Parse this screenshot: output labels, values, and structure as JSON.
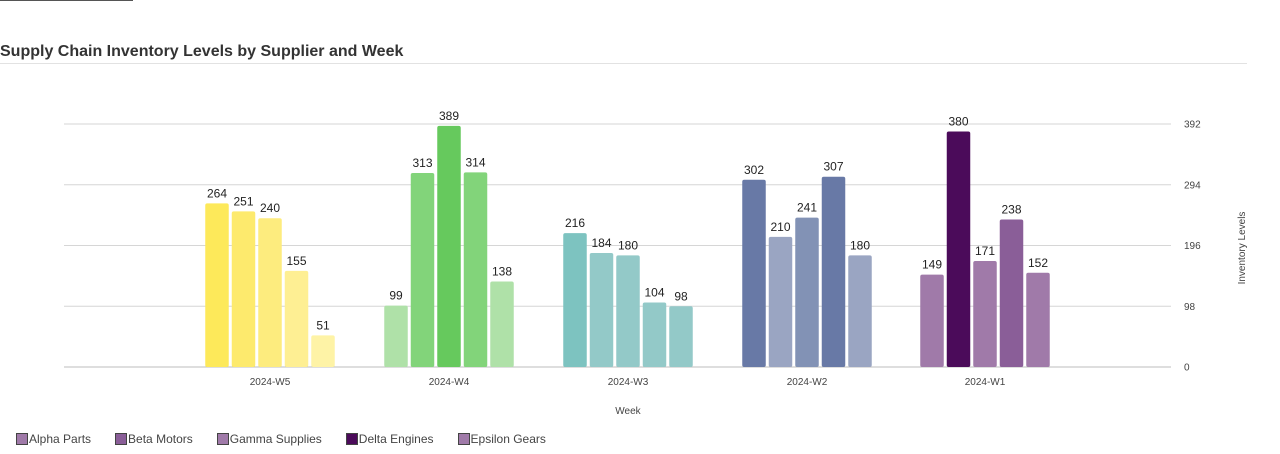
{
  "chart_data": {
    "type": "bar",
    "title": "Supply Chain Inventory Levels by Supplier and Week",
    "xlabel": "Week",
    "ylabel": "Inventory Levels",
    "categories": [
      "2024-W5",
      "2024-W4",
      "2024-W3",
      "2024-W2",
      "2024-W1"
    ],
    "series": [
      {
        "name": "Alpha Parts",
        "values": [
          264,
          99,
          216,
          302,
          149
        ]
      },
      {
        "name": "Beta Motors",
        "values": [
          251,
          313,
          184,
          210,
          380
        ]
      },
      {
        "name": "Gamma Supplies",
        "values": [
          240,
          389,
          180,
          241,
          171
        ]
      },
      {
        "name": "Delta Engines",
        "values": [
          155,
          314,
          104,
          307,
          238
        ]
      },
      {
        "name": "Epsilon Gears",
        "values": [
          51,
          138,
          98,
          180,
          152
        ]
      }
    ],
    "yticks": [
      "0",
      "98",
      "196",
      "294",
      "392"
    ],
    "ylim": [
      0,
      392
    ],
    "y_axis_side": "right",
    "grid": true,
    "legend_position": "bottom-left",
    "legend_colors": [
      "#a07aa9",
      "#8a5e98",
      "#a07aa9",
      "#4b0b5a",
      "#a07aa9"
    ],
    "bar_colors": [
      [
        "#fde95a",
        "#fdea6d",
        "#fdec7e",
        "#feef93",
        "#fef3a6"
      ],
      [
        "#afe1a8",
        "#82d47a",
        "#66c95d",
        "#82d47a",
        "#afe1a8"
      ],
      [
        "#7dc3c0",
        "#93c9c8",
        "#93c9c8",
        "#93c9c8",
        "#93c9c8"
      ],
      [
        "#6879a6",
        "#9aa5c2",
        "#8292b5",
        "#6879a6",
        "#9aa5c2"
      ],
      [
        "#a07aa9",
        "#4b0b5a",
        "#a07aa9",
        "#8a5e98",
        "#a07aa9"
      ]
    ]
  }
}
